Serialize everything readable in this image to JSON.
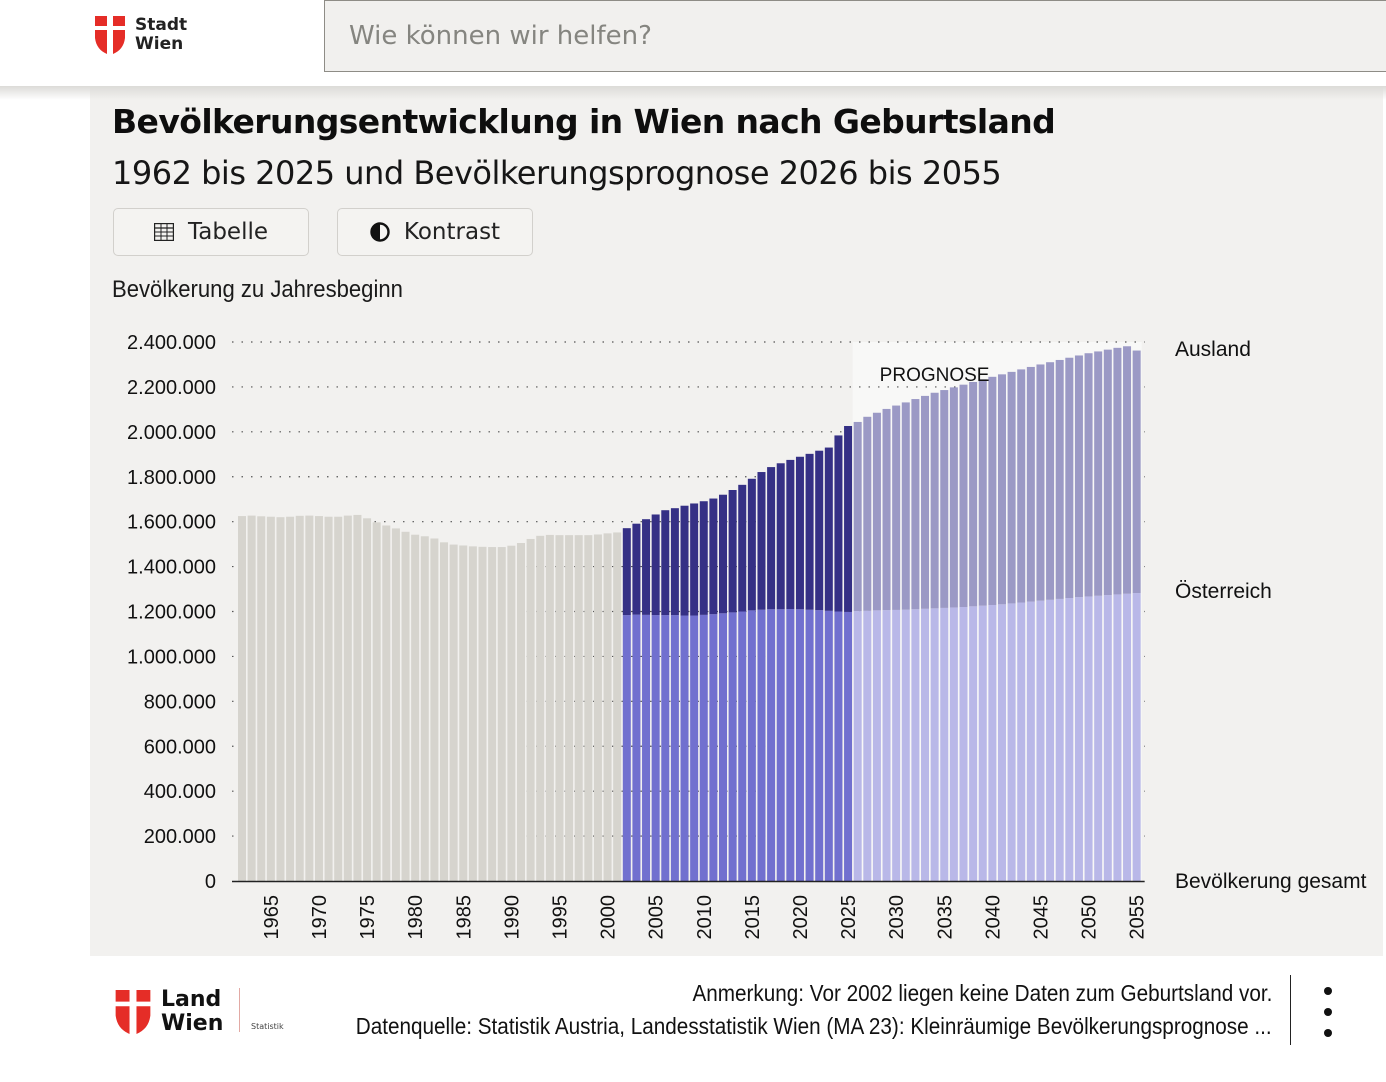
{
  "header": {
    "logo_line1": "Stadt",
    "logo_line2": "Wien",
    "search_placeholder": "Wie können wir helfen?"
  },
  "title": "Bevölkerungsentwicklung in Wien nach Geburtsland",
  "subtitle": "1962 bis 2025 und Bevölkerungsprognose 2026 bis 2055",
  "buttons": {
    "table_label": "Tabelle",
    "table_icon": "table-icon",
    "contrast_label": "Kontrast",
    "contrast_icon": "contrast-icon"
  },
  "colors": {
    "gesamt": "#d6d4ce",
    "oesterreich": "#7170cf",
    "ausland": "#353085",
    "oesterreich_prognose": "#b9b8e8",
    "ausland_prognose": "#9b99c5",
    "prognose_bg": "#f8f8f7",
    "logo_red": "#e52d27"
  },
  "chart_data": {
    "type": "bar",
    "stacked": true,
    "title": "Bevölkerung zu Jahresbeginn",
    "xlabel": "",
    "ylabel": "Bevölkerung zu Jahresbeginn",
    "ylim": [
      0,
      2400000
    ],
    "yticks": [
      0,
      200000,
      400000,
      600000,
      800000,
      1000000,
      1200000,
      1400000,
      1600000,
      1800000,
      2000000,
      2200000,
      2400000
    ],
    "ytick_labels": [
      "0",
      "200.000",
      "400.000",
      "600.000",
      "800.000",
      "1.000.000",
      "1.200.000",
      "1.400.000",
      "1.600.000",
      "1.800.000",
      "2.000.000",
      "2.200.000",
      "2.400.000"
    ],
    "xtick_labels": [
      "1965",
      "1970",
      "1975",
      "1980",
      "1985",
      "1990",
      "1995",
      "2000",
      "2005",
      "2010",
      "2015",
      "2020",
      "2025",
      "2030",
      "2035",
      "2040",
      "2045",
      "2050",
      "2055"
    ],
    "grid": "horizontal dotted",
    "prognose_label": "PROGNOSE",
    "prognose_start_year": 2026,
    "legend": [
      {
        "name": "Ausland",
        "color": "#353085",
        "position": "right-top"
      },
      {
        "name": "Österreich",
        "color": "#7170cf",
        "position": "right-middle"
      },
      {
        "name": "Bevölkerung gesamt",
        "color": "#d6d4ce",
        "position": "right-bottom"
      }
    ],
    "years": [
      1962,
      1963,
      1964,
      1965,
      1966,
      1967,
      1968,
      1969,
      1970,
      1971,
      1972,
      1973,
      1974,
      1975,
      1976,
      1977,
      1978,
      1979,
      1980,
      1981,
      1982,
      1983,
      1984,
      1985,
      1986,
      1987,
      1988,
      1989,
      1990,
      1991,
      1992,
      1993,
      1994,
      1995,
      1996,
      1997,
      1998,
      1999,
      2000,
      2001,
      2002,
      2003,
      2004,
      2005,
      2006,
      2007,
      2008,
      2009,
      2010,
      2011,
      2012,
      2013,
      2014,
      2015,
      2016,
      2017,
      2018,
      2019,
      2020,
      2021,
      2022,
      2023,
      2024,
      2025,
      2026,
      2027,
      2028,
      2029,
      2030,
      2031,
      2032,
      2033,
      2034,
      2035,
      2036,
      2037,
      2038,
      2039,
      2040,
      2041,
      2042,
      2043,
      2044,
      2045,
      2046,
      2047,
      2048,
      2049,
      2050,
      2051,
      2052,
      2053,
      2054,
      2055
    ],
    "series": [
      {
        "name": "Bevölkerung gesamt",
        "note": "1962–2001, no breakdown by birth country",
        "values": [
          1625000,
          1627000,
          1624000,
          1622000,
          1620000,
          1622000,
          1626000,
          1627000,
          1625000,
          1622000,
          1622000,
          1627000,
          1630000,
          1615000,
          1597000,
          1583000,
          1570000,
          1555000,
          1542000,
          1535000,
          1525000,
          1508000,
          1498000,
          1494000,
          1490000,
          1488000,
          1487000,
          1487000,
          1493000,
          1505000,
          1523000,
          1537000,
          1541000,
          1540000,
          1540000,
          1540000,
          1540000,
          1543000,
          1548000,
          1552000,
          null,
          null,
          null,
          null,
          null,
          null,
          null,
          null,
          null,
          null,
          null,
          null,
          null,
          null,
          null,
          null,
          null,
          null,
          null,
          null,
          null,
          null,
          null,
          null,
          null,
          null,
          null,
          null,
          null,
          null,
          null,
          null,
          null,
          null,
          null,
          null,
          null,
          null,
          null,
          null,
          null,
          null,
          null,
          null,
          null,
          null,
          null,
          null,
          null,
          null,
          null,
          null,
          null,
          null
        ]
      },
      {
        "name": "Österreich",
        "values": [
          null,
          null,
          null,
          null,
          null,
          null,
          null,
          null,
          null,
          null,
          null,
          null,
          null,
          null,
          null,
          null,
          null,
          null,
          null,
          null,
          null,
          null,
          null,
          null,
          null,
          null,
          null,
          null,
          null,
          null,
          null,
          null,
          null,
          null,
          null,
          null,
          null,
          null,
          null,
          null,
          1184000,
          1186000,
          1185000,
          1184000,
          1184000,
          1184000,
          1182000,
          1182000,
          1185000,
          1188000,
          1192000,
          1196000,
          1200000,
          1205000,
          1208000,
          1210000,
          1210000,
          1211000,
          1210000,
          1208000,
          1206000,
          1203000,
          1200000,
          1198000,
          1202000,
          1203000,
          1205000,
          1206000,
          1207000,
          1208000,
          1210000,
          1212000,
          1214000,
          1216000,
          1218000,
          1220000,
          1223000,
          1226000,
          1229000,
          1232000,
          1236000,
          1240000,
          1244000,
          1248000,
          1252000,
          1256000,
          1260000,
          1264000,
          1267000,
          1270000,
          1273000,
          1276000,
          1279000,
          1282000
        ]
      },
      {
        "name": "Ausland",
        "values": [
          null,
          null,
          null,
          null,
          null,
          null,
          null,
          null,
          null,
          null,
          null,
          null,
          null,
          null,
          null,
          null,
          null,
          null,
          null,
          null,
          null,
          null,
          null,
          null,
          null,
          null,
          null,
          null,
          null,
          null,
          null,
          null,
          null,
          null,
          null,
          null,
          null,
          null,
          null,
          null,
          387000,
          405000,
          426000,
          448000,
          467000,
          476000,
          489000,
          499000,
          506000,
          515000,
          528000,
          545000,
          564000,
          586000,
          613000,
          633000,
          650000,
          664000,
          679000,
          694000,
          710000,
          727000,
          784000,
          828000,
          842000,
          864000,
          880000,
          896000,
          910000,
          923000,
          936000,
          948000,
          960000,
          970000,
          980000,
          990000,
          999000,
          1008000,
          1016000,
          1024000,
          1031000,
          1038000,
          1045000,
          1052000,
          1058000,
          1064000,
          1070000,
          1076000,
          1083000,
          1088000,
          1093000,
          1098000,
          1102000,
          1080000
        ]
      }
    ]
  },
  "footer": {
    "logo_line1": "Land",
    "logo_line2": "Wien",
    "logo_sub": "Statistik",
    "note": "Anmerkung: Vor 2002 liegen keine Daten zum Geburtsland vor.",
    "source": "Datenquelle: Statistik Austria, Landesstatistik Wien (MA 23): Kleinräumige Bevölkerungsprognose ..."
  }
}
